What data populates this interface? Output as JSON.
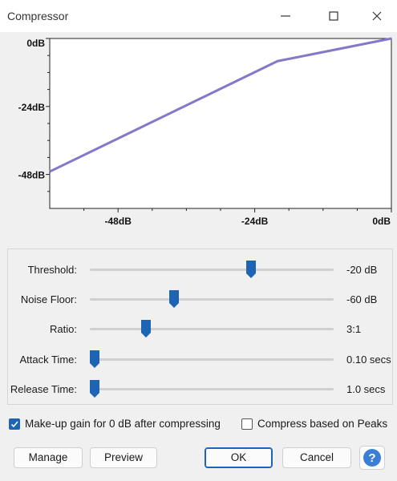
{
  "window": {
    "title": "Compressor",
    "controls": {
      "minimize_icon": "minimize-icon",
      "maximize_icon": "maximize-icon",
      "close_icon": "close-icon"
    }
  },
  "chart_data": {
    "type": "line",
    "title": "",
    "xlabel": "",
    "ylabel": "",
    "xlim": [
      -60,
      0
    ],
    "ylim": [
      -60,
      0
    ],
    "x_ticks": [
      "-48dB",
      "-24dB",
      "0dB"
    ],
    "y_ticks": [
      "0dB",
      "-24dB",
      "-48dB"
    ],
    "grid": false,
    "series": [
      {
        "color": "#8478c8",
        "points": [
          [
            -60,
            -47
          ],
          [
            -20,
            -8
          ],
          [
            0,
            0
          ]
        ]
      }
    ]
  },
  "sliders": [
    {
      "label": "Threshold:",
      "value": "-20 dB",
      "position": 0.67
    },
    {
      "label": "Noise Floor:",
      "value": "-60 dB",
      "position": 0.34
    },
    {
      "label": "Ratio:",
      "value": "3:1",
      "position": 0.22
    },
    {
      "label": "Attack Time:",
      "value": "0.10 secs",
      "position": 0.0
    },
    {
      "label": "Release Time:",
      "value": "1.0 secs",
      "position": 0.0
    }
  ],
  "options": {
    "makeup_gain": {
      "label": "Make-up gain for 0 dB after compressing",
      "checked": true
    },
    "peaks": {
      "label": "Compress based on Peaks",
      "checked": false
    }
  },
  "buttons": {
    "manage": "Manage",
    "preview": "Preview",
    "ok": "OK",
    "cancel": "Cancel",
    "help_icon": "help-icon"
  },
  "colors": {
    "accent": "#1e64b4",
    "curve": "#8478c8",
    "help": "#3a7fd5"
  }
}
